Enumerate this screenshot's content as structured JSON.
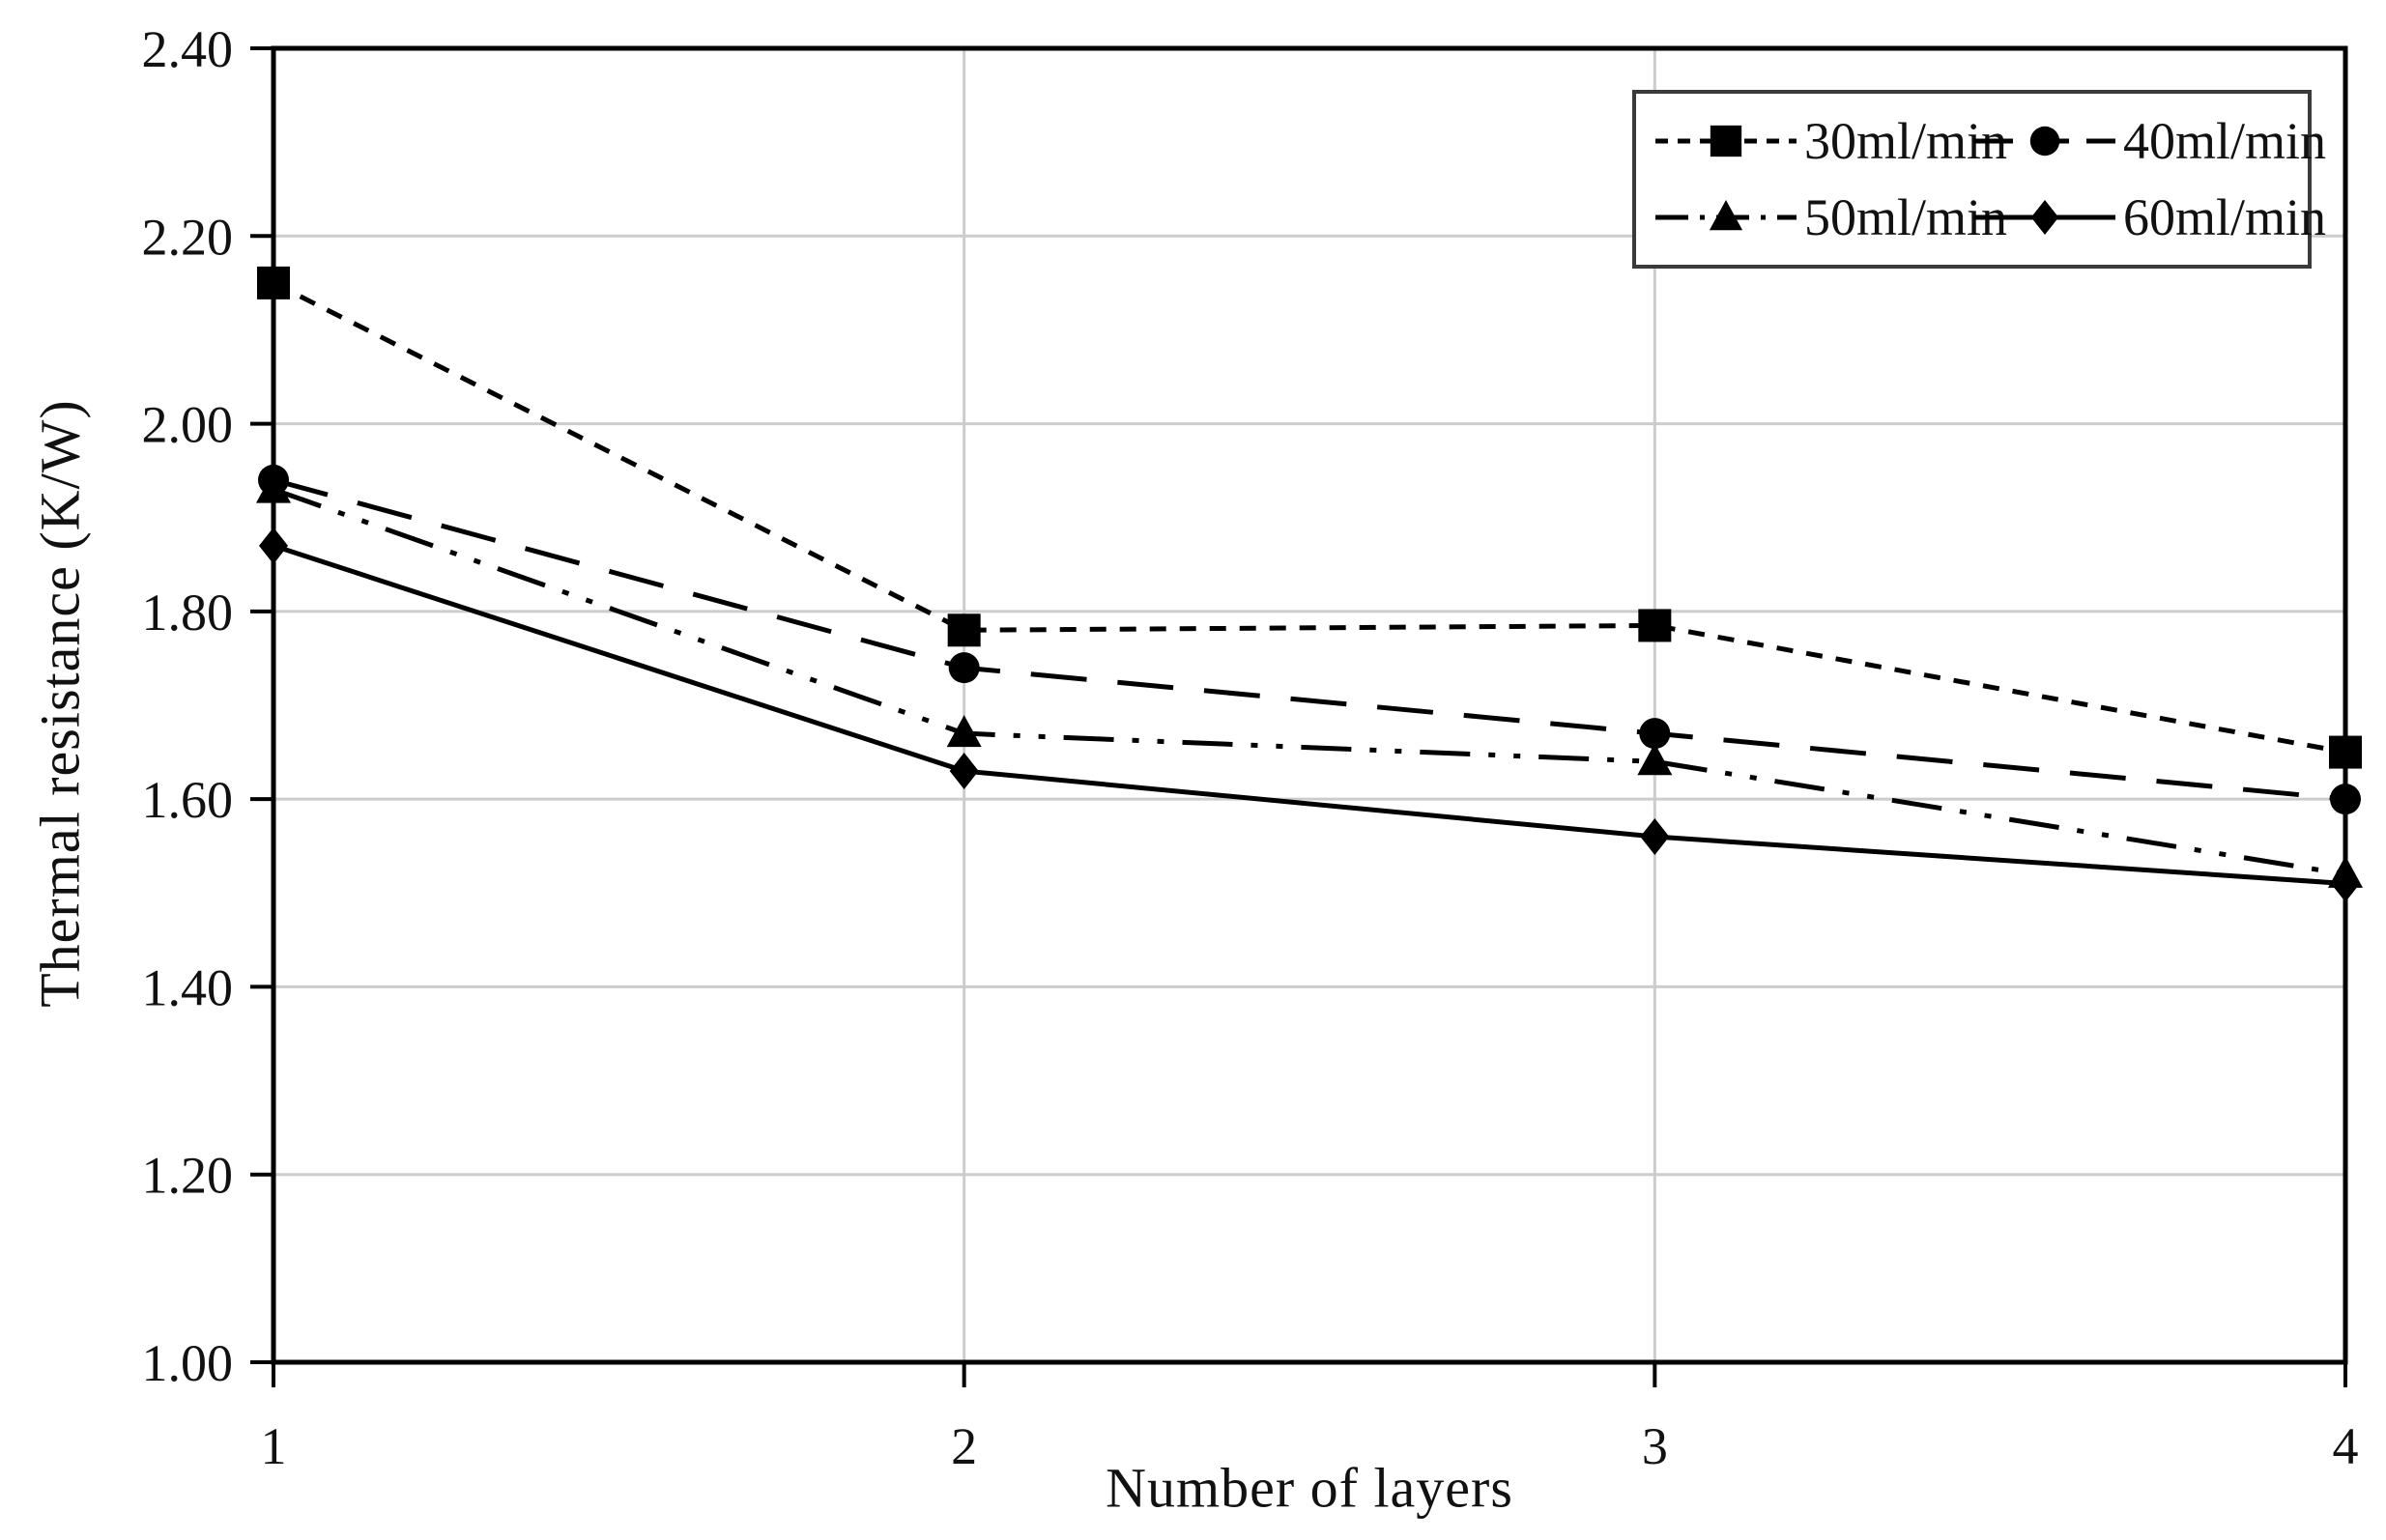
{
  "chart_data": {
    "type": "line",
    "title": "",
    "xlabel": "Number of layers",
    "ylabel": "Thermal resistance (K/W)",
    "x": [
      1,
      2,
      3,
      4
    ],
    "x_tick_labels": [
      "1",
      "2",
      "3",
      "4"
    ],
    "y_tick_labels": [
      "1.00",
      "1.20",
      "1.40",
      "1.60",
      "1.80",
      "2.00",
      "2.20",
      "2.40"
    ],
    "y_ticks": [
      1.0,
      1.2,
      1.4,
      1.6,
      1.8,
      2.0,
      2.2,
      2.4
    ],
    "xlim": [
      1,
      4
    ],
    "ylim": [
      1.0,
      2.4
    ],
    "grid": "on",
    "legend_position": "top-right",
    "series": [
      {
        "name": "30ml/min",
        "marker": "square",
        "line_style": "short-dash",
        "values": [
          2.15,
          1.78,
          1.785,
          1.65
        ]
      },
      {
        "name": "40ml/min",
        "marker": "circle",
        "line_style": "long-dash",
        "values": [
          1.94,
          1.74,
          1.67,
          1.6
        ]
      },
      {
        "name": "50ml/min",
        "marker": "triangle",
        "line_style": "dash-dot-dot",
        "values": [
          1.93,
          1.67,
          1.64,
          1.52
        ]
      },
      {
        "name": "60ml/min",
        "marker": "diamond",
        "line_style": "solid",
        "values": [
          1.87,
          1.63,
          1.56,
          1.51
        ]
      }
    ],
    "colors": {
      "series": "#000000",
      "grid": "#cccccc",
      "axis": "#000000",
      "background": "#ffffff",
      "text": "#111111"
    }
  }
}
